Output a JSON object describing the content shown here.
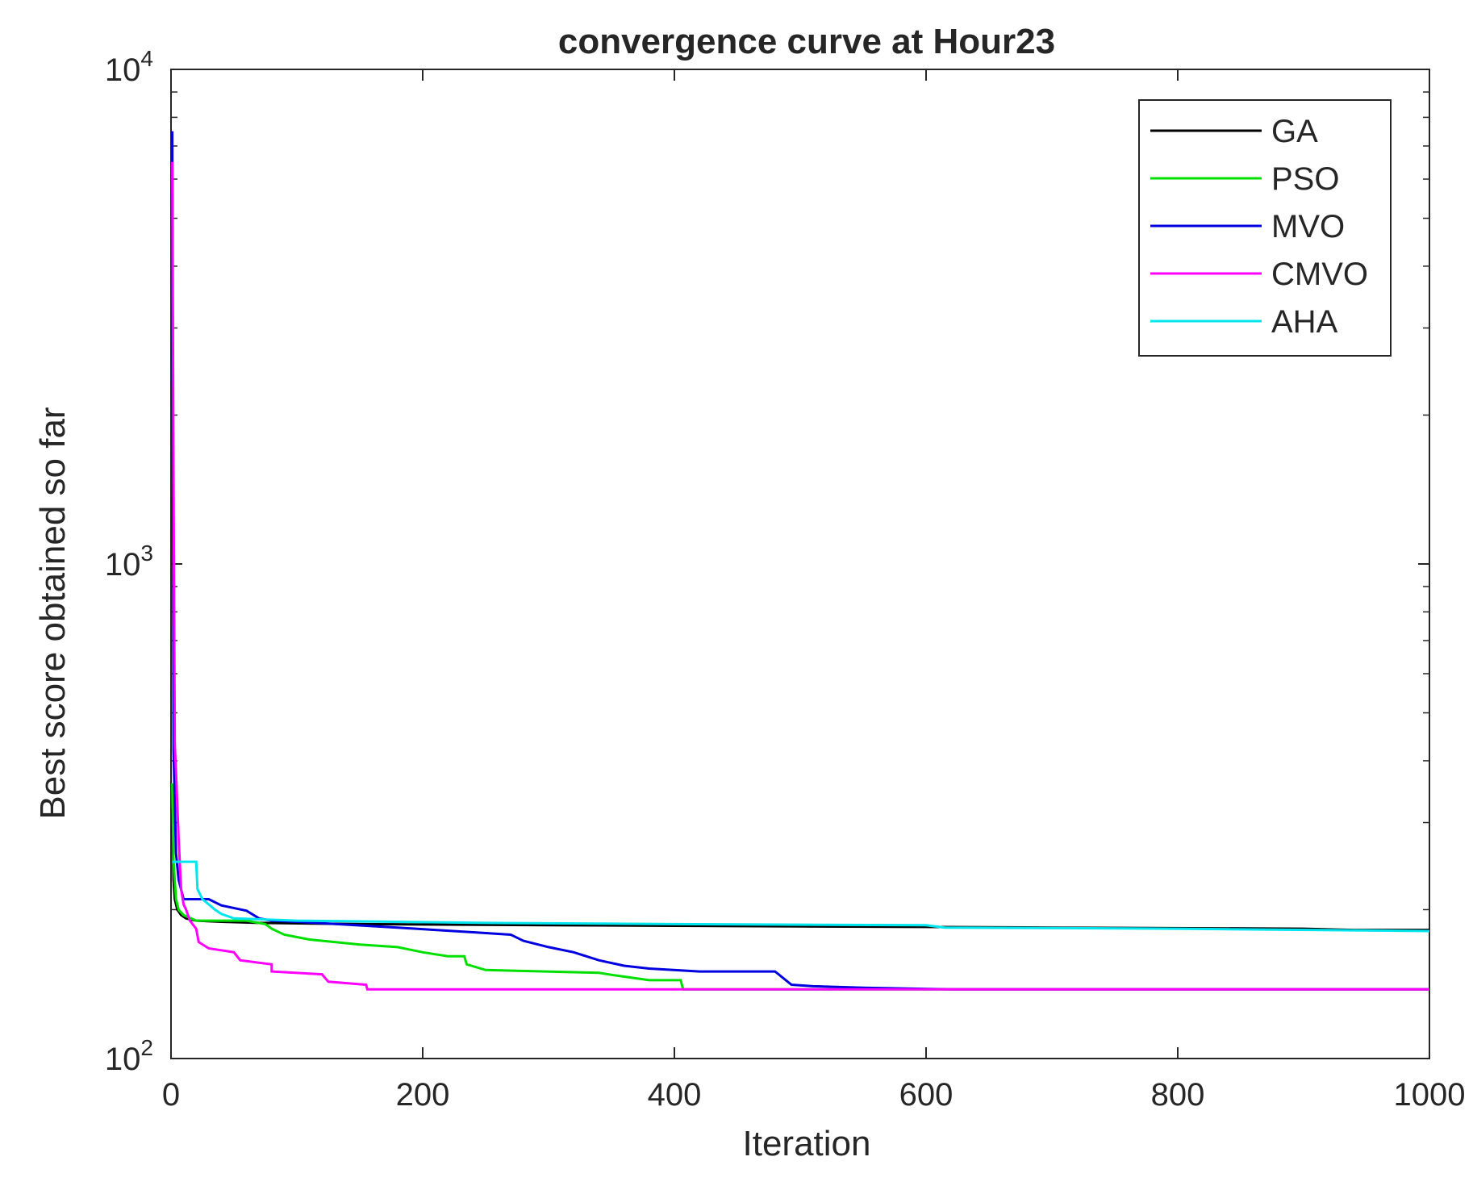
{
  "chart_data": {
    "type": "line",
    "title": "convergence curve at Hour23",
    "xlabel": "Iteration",
    "ylabel": "Best score obtained so far",
    "xlim": [
      0,
      1000
    ],
    "ylim": [
      100,
      10000
    ],
    "yscale": "log",
    "xticks": [
      0,
      200,
      400,
      600,
      800,
      1000
    ],
    "xtick_labels": [
      "0",
      "200",
      "400",
      "600",
      "800",
      "1000"
    ],
    "yticks": [
      100,
      1000,
      10000
    ],
    "ytick_labels": [
      {
        "base": "10",
        "exp": "2"
      },
      {
        "base": "10",
        "exp": "3"
      },
      {
        "base": "10",
        "exp": "4"
      }
    ],
    "grid": false,
    "legend_position": "top-right",
    "series": [
      {
        "name": "GA",
        "color": "#000000",
        "points": [
          [
            1,
            320
          ],
          [
            2,
            230
          ],
          [
            3,
            210
          ],
          [
            5,
            200
          ],
          [
            8,
            195
          ],
          [
            12,
            192
          ],
          [
            20,
            190
          ],
          [
            40,
            189
          ],
          [
            70,
            188
          ],
          [
            150,
            187
          ],
          [
            300,
            186
          ],
          [
            500,
            185
          ],
          [
            700,
            184
          ],
          [
            900,
            183
          ],
          [
            940,
            182
          ],
          [
            1000,
            182
          ]
        ]
      },
      {
        "name": "PSO",
        "color": "#00e000",
        "points": [
          [
            1,
            360
          ],
          [
            2,
            250
          ],
          [
            4,
            210
          ],
          [
            6,
            200
          ],
          [
            10,
            195
          ],
          [
            20,
            190
          ],
          [
            60,
            190
          ],
          [
            75,
            187
          ],
          [
            80,
            183
          ],
          [
            90,
            178
          ],
          [
            110,
            174
          ],
          [
            150,
            170
          ],
          [
            180,
            168
          ],
          [
            200,
            164
          ],
          [
            220,
            161
          ],
          [
            233,
            161
          ],
          [
            235,
            155
          ],
          [
            250,
            151
          ],
          [
            340,
            149
          ],
          [
            355,
            147
          ],
          [
            380,
            144
          ],
          [
            405,
            144
          ],
          [
            407,
            138
          ],
          [
            1000,
            138
          ]
        ]
      },
      {
        "name": "MVO",
        "color": "#0000e0",
        "points": [
          [
            1,
            7500
          ],
          [
            2,
            420
          ],
          [
            4,
            260
          ],
          [
            6,
            230
          ],
          [
            10,
            210
          ],
          [
            30,
            210
          ],
          [
            40,
            204
          ],
          [
            60,
            199
          ],
          [
            70,
            192
          ],
          [
            80,
            190
          ],
          [
            100,
            189
          ],
          [
            180,
            184
          ],
          [
            210,
            182
          ],
          [
            240,
            180
          ],
          [
            270,
            178
          ],
          [
            280,
            173
          ],
          [
            300,
            168
          ],
          [
            320,
            164
          ],
          [
            340,
            158
          ],
          [
            360,
            154
          ],
          [
            380,
            152
          ],
          [
            420,
            150
          ],
          [
            480,
            150
          ],
          [
            493,
            141
          ],
          [
            510,
            140
          ],
          [
            550,
            139
          ],
          [
            620,
            138
          ],
          [
            1000,
            138
          ]
        ]
      },
      {
        "name": "CMVO",
        "color": "#ff00ff",
        "points": [
          [
            1,
            6500
          ],
          [
            2,
            1500
          ],
          [
            3,
            430
          ],
          [
            4,
            380
          ],
          [
            6,
            280
          ],
          [
            8,
            220
          ],
          [
            10,
            205
          ],
          [
            12,
            200
          ],
          [
            15,
            190
          ],
          [
            20,
            183
          ],
          [
            22,
            172
          ],
          [
            30,
            167
          ],
          [
            50,
            164
          ],
          [
            55,
            158
          ],
          [
            80,
            155
          ],
          [
            80,
            150
          ],
          [
            120,
            148
          ],
          [
            125,
            143
          ],
          [
            155,
            141
          ],
          [
            156,
            138
          ],
          [
            400,
            138
          ],
          [
            1000,
            138
          ]
        ]
      },
      {
        "name": "AHA",
        "color": "#00e5ee",
        "points": [
          [
            1,
            250
          ],
          [
            15,
            250
          ],
          [
            20,
            250
          ],
          [
            21,
            220
          ],
          [
            25,
            210
          ],
          [
            35,
            200
          ],
          [
            40,
            196
          ],
          [
            50,
            192
          ],
          [
            100,
            190
          ],
          [
            250,
            188
          ],
          [
            400,
            187
          ],
          [
            600,
            186
          ],
          [
            615,
            184
          ],
          [
            800,
            183
          ],
          [
            1000,
            181
          ]
        ]
      }
    ]
  }
}
